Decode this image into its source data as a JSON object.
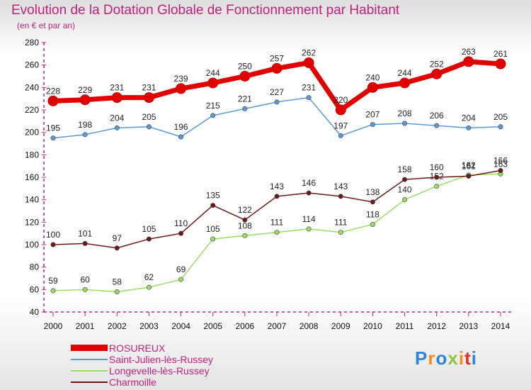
{
  "title": "Evolution de la Dotation Globale de Fonctionnement par Habitant",
  "subtitle": "(en € et par an)",
  "brand": "Proxiti",
  "colors": {
    "accent": "#c41e7a",
    "axis": "#c41e7a"
  },
  "chart_data": {
    "type": "line",
    "title": "Evolution de la Dotation Globale de Fonctionnement par Habitant",
    "subtitle": "(en € et par an)",
    "xlabel": "",
    "ylabel": "",
    "x": [
      "2000",
      "2001",
      "2002",
      "2003",
      "2004",
      "2005",
      "2006",
      "2007",
      "2008",
      "2009",
      "2010",
      "2011",
      "2012",
      "2013",
      "2014"
    ],
    "ylim": [
      40,
      280
    ],
    "yticks": [
      40,
      60,
      80,
      100,
      120,
      140,
      160,
      180,
      200,
      220,
      240,
      260,
      280
    ],
    "grid": false,
    "legend_position": "bottom-left",
    "series": [
      {
        "name": "ROSUREUX",
        "color": "#e00000",
        "emphasis": true,
        "values": [
          228,
          229,
          231,
          231,
          239,
          244,
          250,
          257,
          262,
          220,
          240,
          244,
          252,
          263,
          261
        ]
      },
      {
        "name": "Saint-Julien-lès-Russey",
        "color": "#5b9bd5",
        "emphasis": false,
        "values": [
          195,
          198,
          204,
          205,
          196,
          215,
          221,
          227,
          231,
          197,
          207,
          208,
          206,
          204,
          205
        ]
      },
      {
        "name": "Longevelle-lès-Russey",
        "color": "#99dd66",
        "emphasis": false,
        "values": [
          59,
          60,
          58,
          62,
          69,
          105,
          108,
          111,
          114,
          111,
          118,
          140,
          152,
          162,
          163
        ]
      },
      {
        "name": "Charmoille",
        "color": "#6b1a1a",
        "emphasis": false,
        "values": [
          100,
          101,
          97,
          105,
          110,
          135,
          122,
          143,
          146,
          143,
          138,
          158,
          160,
          161,
          166
        ]
      }
    ]
  }
}
